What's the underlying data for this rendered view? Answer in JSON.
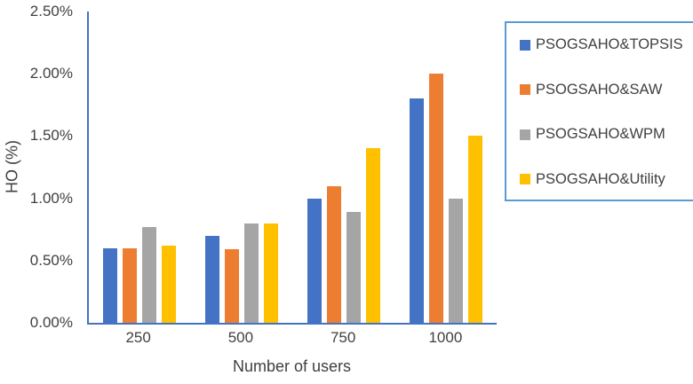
{
  "chart_data": {
    "type": "bar",
    "title": "",
    "xlabel": "Number of users",
    "ylabel": "HO (%)",
    "categories": [
      "250",
      "500",
      "750",
      "1000"
    ],
    "series": [
      {
        "name": "PSOGSAHO&TOPSIS",
        "color": "#4472C4",
        "values": [
          0.6,
          0.7,
          1.0,
          1.8
        ]
      },
      {
        "name": "PSOGSAHO&SAW",
        "color": "#ED7D31",
        "values": [
          0.6,
          0.59,
          1.1,
          2.0
        ]
      },
      {
        "name": "PSOGSAHO&WPM",
        "color": "#A5A5A5",
        "values": [
          0.77,
          0.8,
          0.89,
          1.0
        ]
      },
      {
        "name": "PSOGSAHO&Utility",
        "color": "#FFC000",
        "values": [
          0.62,
          0.8,
          1.4,
          1.5
        ]
      }
    ],
    "y_ticks": [
      {
        "label": "2.50%",
        "value": 2.5
      },
      {
        "label": "2.00%",
        "value": 2.0
      },
      {
        "label": "1.50%",
        "value": 1.5
      },
      {
        "label": "1.00%",
        "value": 1.0
      },
      {
        "label": "0.50%",
        "value": 0.5
      },
      {
        "label": "0.00%",
        "value": 0.0
      }
    ],
    "ylim": [
      0,
      2.5
    ],
    "grid": false,
    "legend_position": "right"
  },
  "colors": {
    "axis_line": "#4472C4",
    "legend_border": "#5B9BD5",
    "text": "#404040"
  }
}
